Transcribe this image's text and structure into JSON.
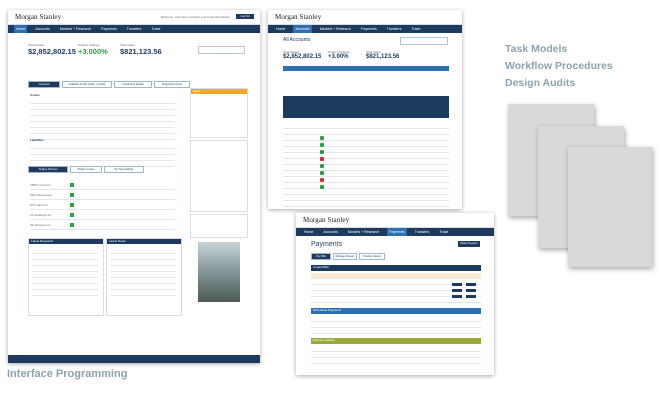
{
  "captions": {
    "bottom_left": "Interface Programming",
    "right_lines": [
      "Task Models",
      "Workflow Procedures",
      "Design Audits"
    ]
  },
  "colors": {
    "navy": "#1d3a5f",
    "accent_blue": "#2d6fb3",
    "green": "#2e9e44",
    "caption": "#8da2ad",
    "olive_bar": "#9aa83a"
  },
  "shot1": {
    "logo": "Morgan Stanley",
    "header_links": "Welcome, Username   Contact your Financial Advisor",
    "header_button": "Log Out",
    "nav_tabs": [
      "Home",
      "Accounts",
      "Markets + Research",
      "Payments",
      "Transfers",
      "Trade"
    ],
    "stats": [
      {
        "label": "Total Assets",
        "value": "$2,852,802.15"
      },
      {
        "label": "Today's Change",
        "value": "+3.000%"
      },
      {
        "label": "Total Value",
        "value": "$821,123.56"
      }
    ],
    "sub_tabs": [
      "Overview",
      "Available Funds (Cash + Credit)",
      "Investment Details",
      "Projected Income"
    ],
    "sections": {
      "assets": "Assets",
      "liabilities": "Liabilities",
      "alerts": "Alerts",
      "latest_research_left": "Latest Research",
      "latest_research_right": "Latest News"
    },
    "market_tabs": [
      "Today's Winners",
      "Today's Losers",
      "My Top Holdings"
    ],
    "tickers": [
      "CBEX Corp Inc",
      "MFG Resources",
      "ATT Labs Inc",
      "KO Holdings Inc",
      "UF Express Inc"
    ]
  },
  "shot2": {
    "logo": "Morgan Stanley",
    "title": "All Accounts",
    "nav_tabs": [
      "Home",
      "Accounts",
      "Markets + Research",
      "Payments",
      "Transfers",
      "Trade"
    ],
    "stats": [
      {
        "label": "Total Assets",
        "value": "$2,852,802.15"
      },
      {
        "label": "Today's Change",
        "value": "+3.00%"
      },
      {
        "label": "Total Value",
        "value": "$821,123.56"
      }
    ]
  },
  "shot3": {
    "logo": "Morgan Stanley",
    "title": "Payments",
    "nav_tabs": [
      "Home",
      "Accounts",
      "Markets + Research",
      "Payments",
      "Transfers",
      "Trade"
    ],
    "sub_tabs": [
      "Pay Bills",
      "Manage Payees",
      "Transfer History"
    ],
    "sections": [
      "Unpaid Bills",
      "Scheduled Payments",
      "Payment History"
    ],
    "button": "Make Payment"
  }
}
